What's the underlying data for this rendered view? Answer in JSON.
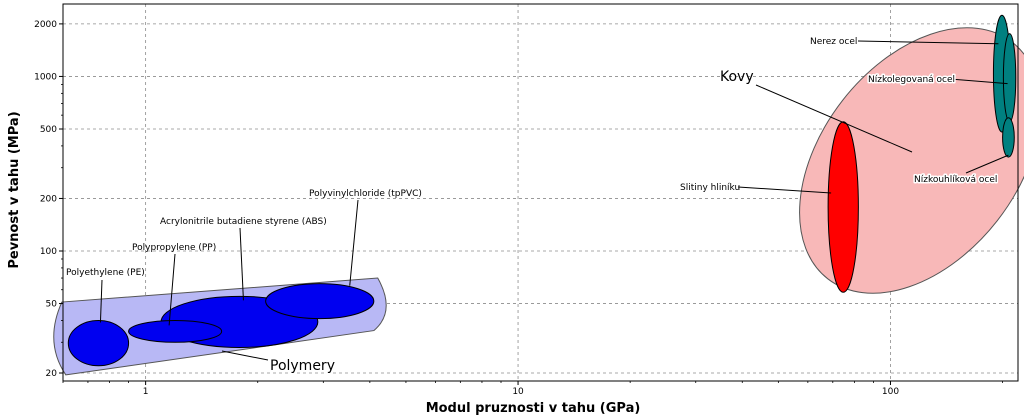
{
  "chart_data": {
    "type": "bubble",
    "xlabel": "Modul pruznosti v tahu (GPa)",
    "ylabel": "Pevnost v tahu (MPa)",
    "x_scale": "log",
    "y_scale": "log",
    "xlim": [
      0.6,
      220
    ],
    "ylim": [
      18,
      2600
    ],
    "x_ticks": [
      1,
      10,
      100
    ],
    "x_tick_labels": [
      "1",
      "10",
      "100"
    ],
    "y_ticks": [
      20,
      50,
      100,
      200,
      500,
      1000,
      2000
    ],
    "y_tick_labels": [
      "20",
      "50",
      "100",
      "200",
      "500",
      "1000",
      "2000"
    ],
    "grid": true,
    "colors": {
      "polymer_envelope": "#b8b8f5",
      "polymer_bubble": "#0000f0",
      "metal_envelope": "#f8b8b8",
      "aluminium_bubble": "#ff0000",
      "steel_bubble": "#008080"
    },
    "groups": [
      {
        "name": "Polymery",
        "materials": [
          {
            "name": "Polyethylene (PE)",
            "modulus": [
              0.62,
              0.9
            ],
            "strength": [
              22,
              40
            ]
          },
          {
            "name": "Polypropylene (PP)",
            "modulus": [
              0.9,
              1.6
            ],
            "strength": [
              30,
              40
            ]
          },
          {
            "name": "Acrylonitrile butadiene styrene (ABS)",
            "modulus": [
              1.1,
              2.9
            ],
            "strength": [
              28,
              55
            ]
          },
          {
            "name": "Polyvinylchloride (tpPVC)",
            "modulus": [
              2.1,
              4.1
            ],
            "strength": [
              41,
              65
            ]
          }
        ]
      },
      {
        "name": "Kovy",
        "materials": [
          {
            "name": "Slitiny hliníku",
            "modulus": [
              68,
              82
            ],
            "strength": [
              58,
              550
            ]
          },
          {
            "name": "Nerez ocel",
            "modulus": [
              189,
              210
            ],
            "strength": [
              480,
              2240
            ]
          },
          {
            "name": "Nízkolegovaná ocel",
            "modulus": [
              201,
              217
            ],
            "strength": [
              550,
              1760
            ]
          },
          {
            "name": "Nízkouhlíková ocel",
            "modulus": [
              200,
              215
            ],
            "strength": [
              345,
              580
            ]
          }
        ]
      }
    ]
  }
}
